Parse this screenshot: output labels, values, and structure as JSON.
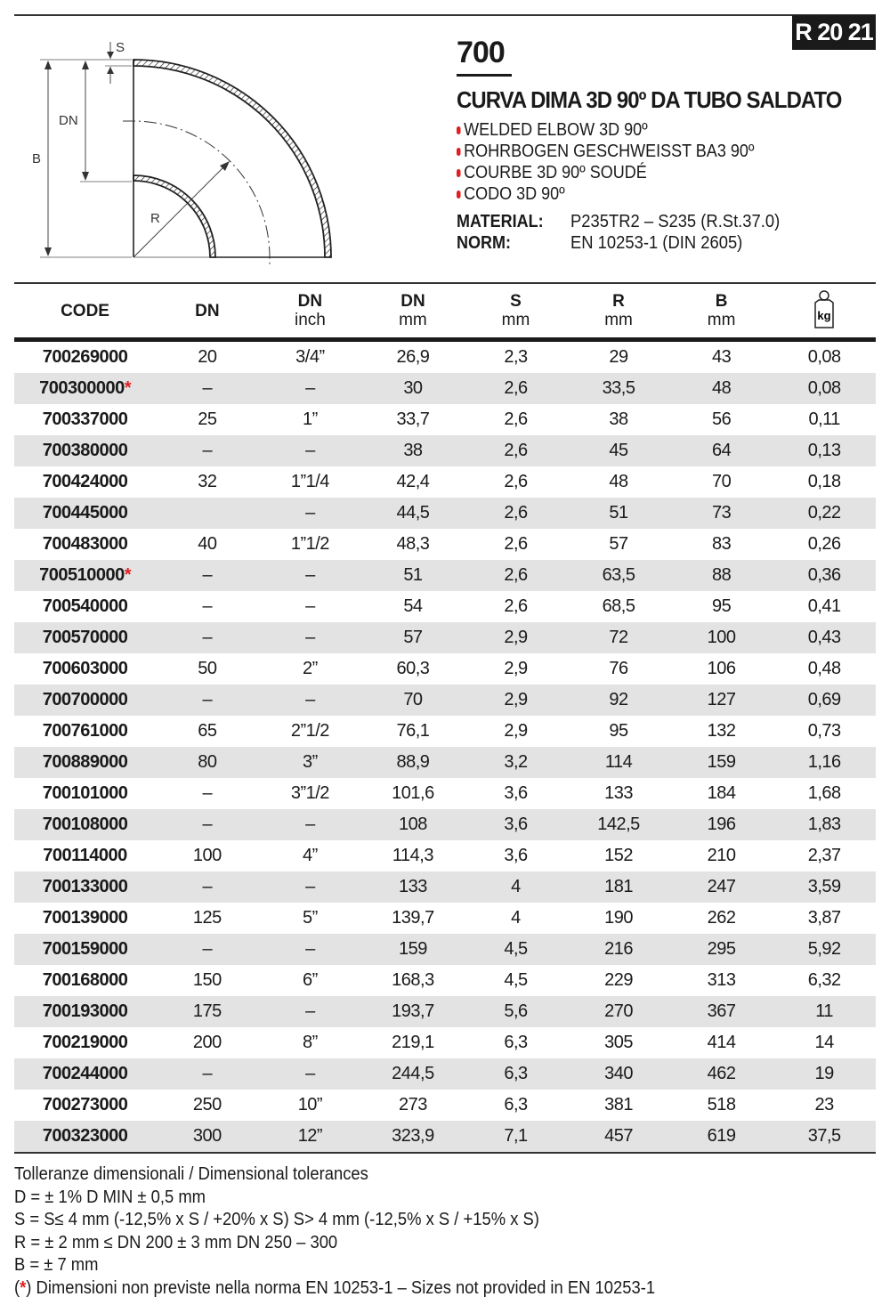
{
  "catalog_ref": "R 20 21",
  "product": {
    "code": "700",
    "title": "CURVA DIMA 3D 90º DA TUBO SALDATO",
    "translations": [
      "WELDED ELBOW 3D 90º",
      "ROHRBOGEN GESCHWEISST BA3 90º",
      "COURBE 3D 90º SOUDÉ",
      "CODO 3D 90º"
    ],
    "material_label": "MATERIAL:",
    "material": "P235TR2 – S235 (R.St.37.0)",
    "norm_label": "NORM:",
    "norm": "EN 10253-1 (DIN 2605)"
  },
  "drawing": {
    "labels": {
      "s": "S",
      "dn": "DN",
      "b": "B",
      "r": "R"
    }
  },
  "accent_color": "#e02020",
  "table": {
    "headers": [
      {
        "main": "CODE",
        "sub": ""
      },
      {
        "main": "DN",
        "sub": ""
      },
      {
        "main": "DN",
        "sub": "inch"
      },
      {
        "main": "DN",
        "sub": "mm"
      },
      {
        "main": "S",
        "sub": "mm"
      },
      {
        "main": "R",
        "sub": "mm"
      },
      {
        "main": "B",
        "sub": "mm"
      },
      {
        "main": "",
        "sub": "",
        "icon": "weight-kg-icon",
        "icon_text": "kg"
      }
    ],
    "rows": [
      {
        "code": "700269000",
        "star": false,
        "cells": [
          "20",
          "3/4”",
          "26,9",
          "2,3",
          "29",
          "43",
          "0,08"
        ]
      },
      {
        "code": "700300000",
        "star": true,
        "cells": [
          "–",
          "–",
          "30",
          "2,6",
          "33,5",
          "48",
          "0,08"
        ]
      },
      {
        "code": "700337000",
        "star": false,
        "cells": [
          "25",
          "1”",
          "33,7",
          "2,6",
          "38",
          "56",
          "0,11"
        ]
      },
      {
        "code": "700380000",
        "star": false,
        "cells": [
          "–",
          "–",
          "38",
          "2,6",
          "45",
          "64",
          "0,13"
        ]
      },
      {
        "code": "700424000",
        "star": false,
        "cells": [
          "32",
          "1”1/4",
          "42,4",
          "2,6",
          "48",
          "70",
          "0,18"
        ]
      },
      {
        "code": "700445000",
        "star": false,
        "cells": [
          "",
          "–",
          "44,5",
          "2,6",
          "51",
          "73",
          "0,22"
        ]
      },
      {
        "code": "700483000",
        "star": false,
        "cells": [
          "40",
          "1”1/2",
          "48,3",
          "2,6",
          "57",
          "83",
          "0,26"
        ]
      },
      {
        "code": "700510000",
        "star": true,
        "cells": [
          "–",
          "–",
          "51",
          "2,6",
          "63,5",
          "88",
          "0,36"
        ]
      },
      {
        "code": "700540000",
        "star": false,
        "cells": [
          "–",
          "–",
          "54",
          "2,6",
          "68,5",
          "95",
          "0,41"
        ]
      },
      {
        "code": "700570000",
        "star": false,
        "cells": [
          "–",
          "–",
          "57",
          "2,9",
          "72",
          "100",
          "0,43"
        ]
      },
      {
        "code": "700603000",
        "star": false,
        "cells": [
          "50",
          "2”",
          "60,3",
          "2,9",
          "76",
          "106",
          "0,48"
        ]
      },
      {
        "code": "700700000",
        "star": false,
        "cells": [
          "–",
          "–",
          "70",
          "2,9",
          "92",
          "127",
          "0,69"
        ]
      },
      {
        "code": "700761000",
        "star": false,
        "cells": [
          "65",
          "2”1/2",
          "76,1",
          "2,9",
          "95",
          "132",
          "0,73"
        ]
      },
      {
        "code": "700889000",
        "star": false,
        "cells": [
          "80",
          "3”",
          "88,9",
          "3,2",
          "114",
          "159",
          "1,16"
        ]
      },
      {
        "code": "700101000",
        "star": false,
        "cells": [
          "–",
          "3”1/2",
          "101,6",
          "3,6",
          "133",
          "184",
          "1,68"
        ]
      },
      {
        "code": "700108000",
        "star": false,
        "cells": [
          "–",
          "–",
          "108",
          "3,6",
          "142,5",
          "196",
          "1,83"
        ]
      },
      {
        "code": "700114000",
        "star": false,
        "cells": [
          "100",
          "4”",
          "114,3",
          "3,6",
          "152",
          "210",
          "2,37"
        ]
      },
      {
        "code": "700133000",
        "star": false,
        "cells": [
          "–",
          "–",
          "133",
          "4",
          "181",
          "247",
          "3,59"
        ]
      },
      {
        "code": "700139000",
        "star": false,
        "cells": [
          "125",
          "5”",
          "139,7",
          "4",
          "190",
          "262",
          "3,87"
        ]
      },
      {
        "code": "700159000",
        "star": false,
        "cells": [
          "–",
          "–",
          "159",
          "4,5",
          "216",
          "295",
          "5,92"
        ]
      },
      {
        "code": "700168000",
        "star": false,
        "cells": [
          "150",
          "6”",
          "168,3",
          "4,5",
          "229",
          "313",
          "6,32"
        ]
      },
      {
        "code": "700193000",
        "star": false,
        "cells": [
          "175",
          "–",
          "193,7",
          "5,6",
          "270",
          "367",
          "11"
        ]
      },
      {
        "code": "700219000",
        "star": false,
        "cells": [
          "200",
          "8”",
          "219,1",
          "6,3",
          "305",
          "414",
          "14"
        ]
      },
      {
        "code": "700244000",
        "star": false,
        "cells": [
          "–",
          "–",
          "244,5",
          "6,3",
          "340",
          "462",
          "19"
        ]
      },
      {
        "code": "700273000",
        "star": false,
        "cells": [
          "250",
          "10”",
          "273",
          "6,3",
          "381",
          "518",
          "23"
        ]
      },
      {
        "code": "700323000",
        "star": false,
        "cells": [
          "300",
          "12”",
          "323,9",
          "7,1",
          "457",
          "619",
          "37,5"
        ]
      }
    ]
  },
  "notes": {
    "lines": [
      "Tolleranze dimensionali / Dimensional tolerances",
      "D = ± 1% D MIN ± 0,5 mm",
      "S = S≤ 4 mm (-12,5% x S / +20% x S) S> 4 mm (-12,5% x S / +15% x S)",
      "R = ± 2 mm ≤ DN 200 ± 3 mm DN 250 – 300",
      "B = ± 7 mm"
    ],
    "footnote_open": "(",
    "footnote_star": "*",
    "footnote_text": ") Dimensioni non previste nella norma EN 10253-1 – Sizes not provided in EN 10253-1"
  }
}
